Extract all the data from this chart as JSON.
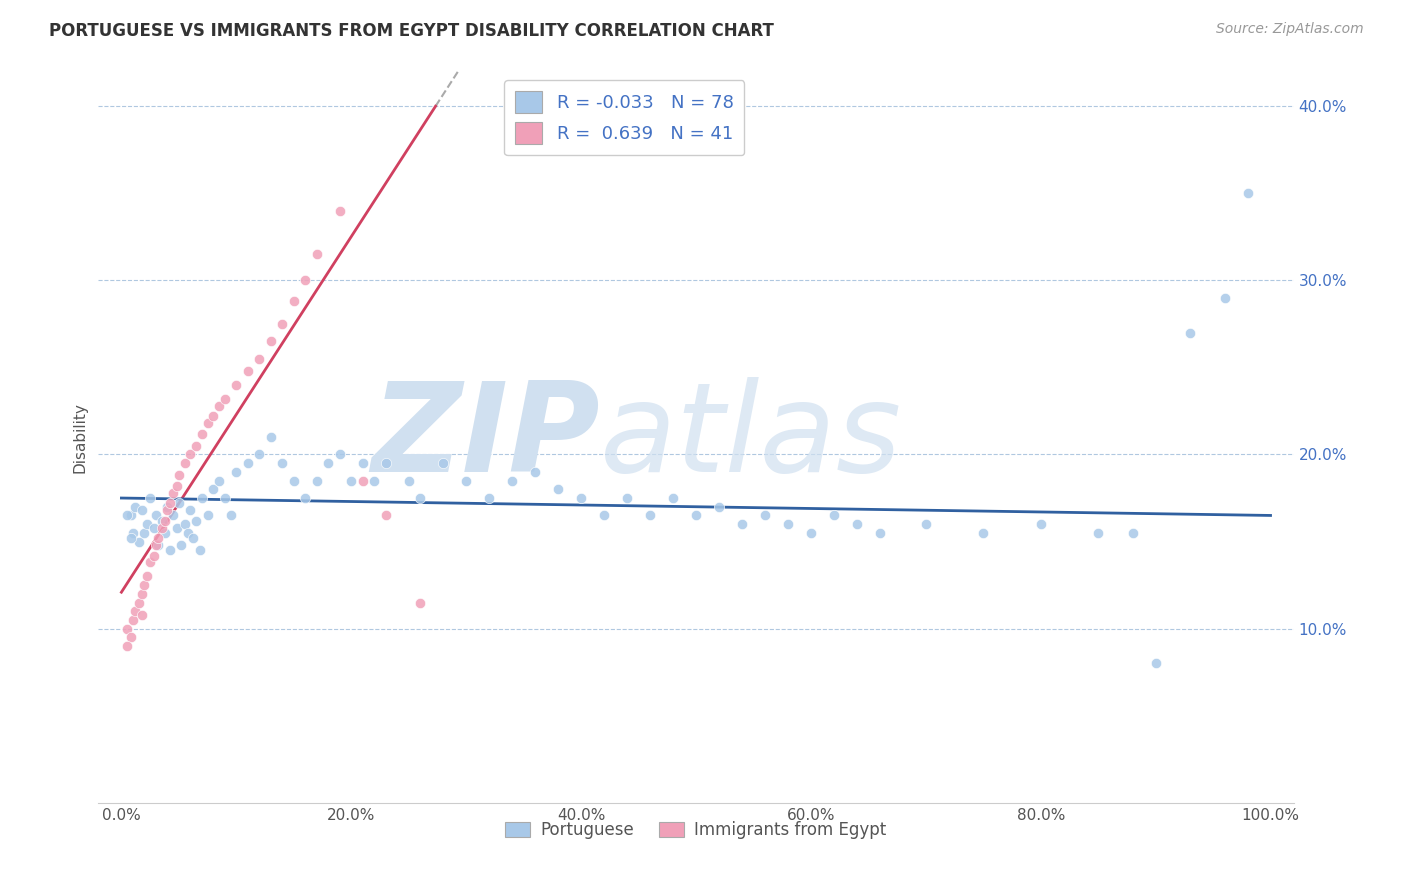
{
  "title": "PORTUGUESE VS IMMIGRANTS FROM EGYPT DISABILITY CORRELATION CHART",
  "source": "Source: ZipAtlas.com",
  "ylabel": "Disability",
  "xlim": [
    -0.02,
    1.02
  ],
  "ylim": [
    0.0,
    0.42
  ],
  "xticks": [
    0.0,
    0.2,
    0.4,
    0.6,
    0.8,
    1.0
  ],
  "yticks": [
    0.1,
    0.2,
    0.3,
    0.4
  ],
  "xtick_labels": [
    "0.0%",
    "20.0%",
    "40.0%",
    "60.0%",
    "80.0%",
    "100.0%"
  ],
  "ytick_labels": [
    "10.0%",
    "20.0%",
    "30.0%",
    "40.0%"
  ],
  "blue_color": "#A8C8E8",
  "pink_color": "#F0A0B8",
  "blue_line_color": "#3060A0",
  "pink_line_color": "#D04060",
  "pink_dash_color": "#C0C0C0",
  "grid_color": "#B0C8E0",
  "background_color": "#FFFFFF",
  "watermark_color": "#D0E0F0",
  "legend_r_blue": "-0.033",
  "legend_n_blue": "78",
  "legend_r_pink": "0.639",
  "legend_n_pink": "41",
  "blue_scatter_x": [
    0.008,
    0.01,
    0.012,
    0.015,
    0.018,
    0.02,
    0.022,
    0.025,
    0.028,
    0.03,
    0.032,
    0.035,
    0.038,
    0.04,
    0.042,
    0.045,
    0.048,
    0.05,
    0.052,
    0.055,
    0.058,
    0.06,
    0.062,
    0.065,
    0.068,
    0.07,
    0.075,
    0.08,
    0.085,
    0.09,
    0.095,
    0.1,
    0.11,
    0.12,
    0.13,
    0.14,
    0.15,
    0.16,
    0.17,
    0.18,
    0.19,
    0.2,
    0.21,
    0.22,
    0.23,
    0.25,
    0.26,
    0.28,
    0.3,
    0.32,
    0.34,
    0.36,
    0.38,
    0.4,
    0.42,
    0.44,
    0.46,
    0.48,
    0.5,
    0.52,
    0.54,
    0.56,
    0.58,
    0.6,
    0.62,
    0.64,
    0.66,
    0.7,
    0.75,
    0.8,
    0.85,
    0.88,
    0.9,
    0.93,
    0.96,
    0.98,
    0.005,
    0.008
  ],
  "blue_scatter_y": [
    0.165,
    0.155,
    0.17,
    0.15,
    0.168,
    0.155,
    0.16,
    0.175,
    0.158,
    0.165,
    0.148,
    0.162,
    0.155,
    0.17,
    0.145,
    0.165,
    0.158,
    0.172,
    0.148,
    0.16,
    0.155,
    0.168,
    0.152,
    0.162,
    0.145,
    0.175,
    0.165,
    0.18,
    0.185,
    0.175,
    0.165,
    0.19,
    0.195,
    0.2,
    0.21,
    0.195,
    0.185,
    0.175,
    0.185,
    0.195,
    0.2,
    0.185,
    0.195,
    0.185,
    0.195,
    0.185,
    0.175,
    0.195,
    0.185,
    0.175,
    0.185,
    0.19,
    0.18,
    0.175,
    0.165,
    0.175,
    0.165,
    0.175,
    0.165,
    0.17,
    0.16,
    0.165,
    0.16,
    0.155,
    0.165,
    0.16,
    0.155,
    0.16,
    0.155,
    0.16,
    0.155,
    0.155,
    0.08,
    0.27,
    0.29,
    0.35,
    0.165,
    0.152
  ],
  "pink_scatter_x": [
    0.005,
    0.008,
    0.01,
    0.012,
    0.015,
    0.018,
    0.02,
    0.022,
    0.025,
    0.028,
    0.03,
    0.032,
    0.035,
    0.038,
    0.04,
    0.042,
    0.045,
    0.048,
    0.05,
    0.055,
    0.06,
    0.065,
    0.07,
    0.075,
    0.08,
    0.085,
    0.09,
    0.1,
    0.11,
    0.12,
    0.13,
    0.14,
    0.15,
    0.16,
    0.17,
    0.19,
    0.21,
    0.23,
    0.26,
    0.005,
    0.018
  ],
  "pink_scatter_y": [
    0.1,
    0.095,
    0.105,
    0.11,
    0.115,
    0.12,
    0.125,
    0.13,
    0.138,
    0.142,
    0.148,
    0.152,
    0.158,
    0.162,
    0.168,
    0.172,
    0.178,
    0.182,
    0.188,
    0.195,
    0.2,
    0.205,
    0.212,
    0.218,
    0.222,
    0.228,
    0.232,
    0.24,
    0.248,
    0.255,
    0.265,
    0.275,
    0.288,
    0.3,
    0.315,
    0.34,
    0.185,
    0.165,
    0.115,
    0.09,
    0.108
  ]
}
